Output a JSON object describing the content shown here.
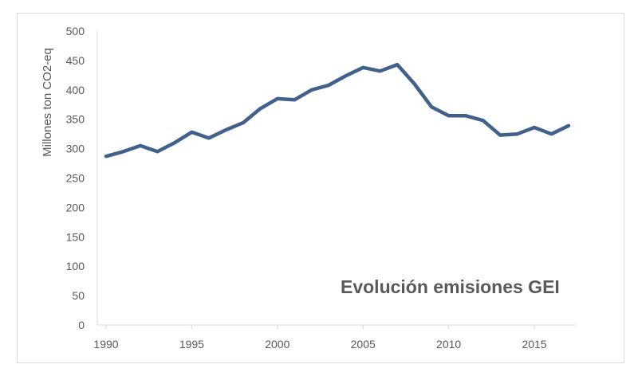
{
  "chart_data": {
    "type": "line",
    "title": "",
    "xlabel": "",
    "ylabel": "Millones ton CO2-eq",
    "annotation": "Evolución emisiones GEI",
    "xlim": [
      1990,
      2017
    ],
    "ylim": [
      0,
      500
    ],
    "x_ticks": [
      1990,
      1995,
      2000,
      2005,
      2010,
      2015
    ],
    "y_ticks": [
      0,
      50,
      100,
      150,
      200,
      250,
      300,
      350,
      400,
      450,
      500
    ],
    "grid": false,
    "legend": "none",
    "series": [
      {
        "color": "#41618c",
        "x": [
          1990,
          1991,
          1992,
          1993,
          1994,
          1995,
          1996,
          1997,
          1998,
          1999,
          2000,
          2001,
          2002,
          2003,
          2004,
          2005,
          2006,
          2007,
          2008,
          2009,
          2010,
          2011,
          2012,
          2013,
          2014,
          2015,
          2016,
          2017
        ],
        "values": [
          287,
          295,
          305,
          295,
          310,
          328,
          318,
          332,
          344,
          368,
          385,
          383,
          400,
          408,
          424,
          438,
          432,
          443,
          410,
          371,
          356,
          356,
          348,
          323,
          325,
          336,
          325,
          339
        ]
      }
    ]
  }
}
